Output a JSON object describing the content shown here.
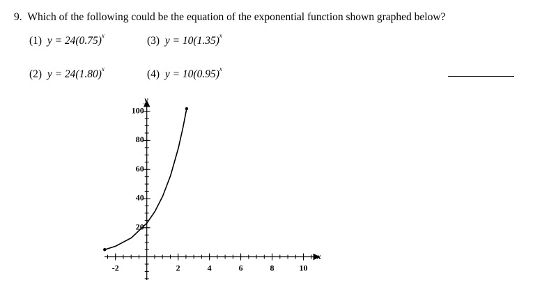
{
  "question": {
    "number": "9.",
    "text": "Which of the following could be the equation of the exponential function shown graphed below?"
  },
  "choices": [
    {
      "label": "(1)",
      "equation": "y = 24(0.75)",
      "exponent": "x"
    },
    {
      "label": "(3)",
      "equation": "y = 10(1.35)",
      "exponent": "x"
    },
    {
      "label": "(2)",
      "equation": "y = 24(1.80)",
      "exponent": "x"
    },
    {
      "label": "(4)",
      "equation": "y = 10(0.95)",
      "exponent": "x"
    }
  ],
  "graph": {
    "x_label": "x",
    "y_label": "y",
    "xlim": [
      -2.7,
      11
    ],
    "ylim": [
      -16,
      107
    ],
    "xticks": [
      -2,
      2,
      4,
      6,
      8,
      10
    ],
    "yticks": [
      20,
      40,
      60,
      80,
      100
    ]
  }
}
